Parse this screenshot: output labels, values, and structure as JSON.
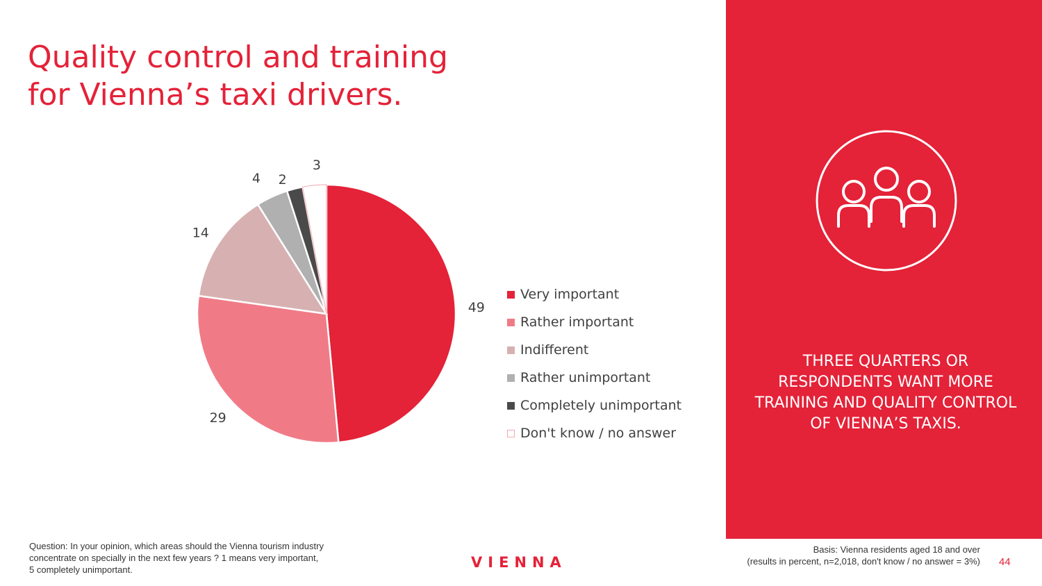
{
  "slide": {
    "title_lines": [
      "Quality control and training",
      "for Vienna’s taxi drivers."
    ],
    "page_number": "44",
    "logo": "VIENNA"
  },
  "panel": {
    "text": "THREE QUARTERS OR RESPONDENTS WANT MORE TRAINING AND QUALITY CONTROL OF VIENNA’S TAXIS.",
    "icon": "people-group-icon",
    "background_color": "#e42238"
  },
  "footer": {
    "question_lines": [
      "Question: In your opinion, which areas should the Vienna tourism industry",
      "concentrate on specially in the next few years ? 1 means very important,",
      "5 completely unimportant."
    ],
    "basis_lines": [
      "Basis: Vienna residents aged 18 and over",
      "(results in percent, n=2,018, don't know / no answer = 3%)"
    ]
  },
  "chart_data": {
    "type": "pie",
    "title": "",
    "start_angle_deg": 0,
    "direction": "clockwise",
    "legend_position": "right",
    "categories": [
      "Very important",
      "Rather important",
      "Indifferent",
      "Rather unimportant",
      "Completely unimportant",
      "Don't know / no answer"
    ],
    "values": [
      49,
      29,
      14,
      4,
      2,
      3
    ],
    "labels": [
      "49",
      "29",
      "14",
      "4",
      "2",
      "3"
    ],
    "colors": [
      "#e42238",
      "#f07b87",
      "#d7b1b1",
      "#b0b0b0",
      "#4a4a4a",
      "#ffffff"
    ],
    "outline_colors": [
      "#ffffff",
      "#ffffff",
      "#ffffff",
      "#ffffff",
      "#ffffff",
      "#f4a7b0"
    ]
  }
}
